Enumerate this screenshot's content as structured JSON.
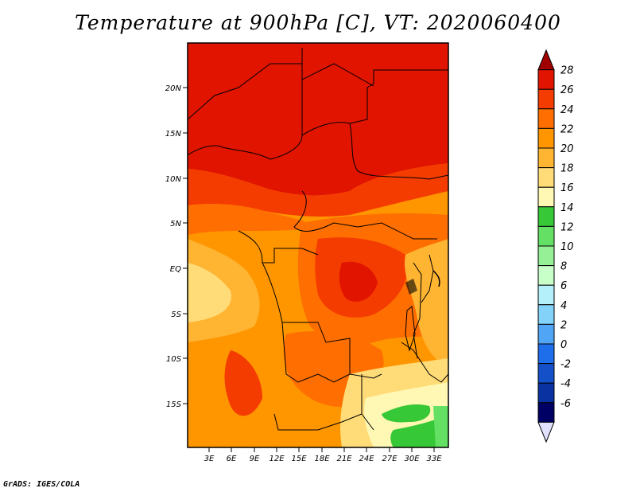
{
  "title": "Temperature at 900hPa [C], VT: 2020060400",
  "footer": "GrADS: IGES/COLA",
  "map": {
    "lat_labels": [
      "20N",
      "15N",
      "10N",
      "5N",
      "EQ",
      "5S",
      "10S",
      "15S"
    ],
    "lon_labels": [
      "3E",
      "6E",
      "9E",
      "12E",
      "15E",
      "18E",
      "21E",
      "24E",
      "27E",
      "30E",
      "33E"
    ]
  },
  "colorbar": {
    "labels": [
      "28",
      "26",
      "24",
      "22",
      "20",
      "18",
      "16",
      "14",
      "12",
      "10",
      "8",
      "6",
      "4",
      "2",
      "0",
      "-2",
      "-4",
      "-6"
    ],
    "colors": [
      "#a00000",
      "#e11400",
      "#f53c00",
      "#ff6e00",
      "#ff9600",
      "#ffb432",
      "#ffdc78",
      "#fff8b4",
      "#37c837",
      "#64e164",
      "#96f096",
      "#c8ffc8",
      "#b4f0fa",
      "#82d2fa",
      "#50a5f5",
      "#1e6eeb",
      "#1450c8",
      "#0a32a0",
      "#000064",
      "#e1e1ff"
    ]
  }
}
